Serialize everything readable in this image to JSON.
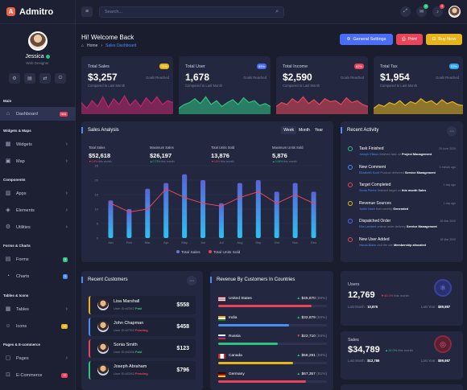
{
  "app": {
    "name": "Admitro",
    "logo_letter": "A"
  },
  "profile": {
    "name": "Jessica",
    "role": "Web Designer"
  },
  "sidebar": {
    "sections": [
      "Main",
      "Widgets & Maps",
      "Components",
      "Forms & Charts",
      "Tables & Icons",
      "Pages & E-commerce"
    ],
    "items": [
      {
        "label": "Dashboard",
        "icon": "home-icon",
        "badge": "new",
        "badge_color": "#e8455a",
        "active": true
      },
      {
        "label": "Widgets",
        "icon": "grid-icon",
        "chevron": true
      },
      {
        "label": "Map",
        "icon": "map-icon",
        "chevron": true
      },
      {
        "label": "Apps",
        "icon": "apps-icon",
        "chevron": true
      },
      {
        "label": "Elements",
        "icon": "layers-icon",
        "chevron": true
      },
      {
        "label": "Utilities",
        "icon": "gear-icon",
        "chevron": true
      },
      {
        "label": "Forms",
        "icon": "form-icon",
        "badge": "5",
        "badge_color": "#2ec27e"
      },
      {
        "label": "Charts",
        "icon": "chart-icon",
        "badge": "5",
        "badge_color": "#4a8df6"
      },
      {
        "label": "Tables",
        "icon": "table-icon",
        "chevron": true
      },
      {
        "label": "Icons",
        "icon": "smile-icon",
        "badge": "10",
        "badge_color": "#e8b41c"
      },
      {
        "label": "Pages",
        "icon": "page-icon",
        "chevron": true
      },
      {
        "label": "E-Commerce",
        "icon": "cart-icon",
        "badge": "12",
        "badge_color": "#e8455a"
      }
    ]
  },
  "topbar": {
    "search_placeholder": "Search...",
    "notif1": "2",
    "notif2": "3"
  },
  "header": {
    "title": "Hi! Welcome Back",
    "crumb_home": "Home",
    "crumb_current": "Sales Dashboard"
  },
  "buttons": {
    "settings": "General Settings",
    "print": "Print",
    "buy": "Buy Now"
  },
  "stats": [
    {
      "label": "Total Sales",
      "value": "$3,257",
      "pct": "74%",
      "pct_color": "#e8b41c",
      "compare": "Compared to Last Month",
      "goal": "Goals Reached",
      "color": "#c2246a"
    },
    {
      "label": "Total User",
      "value": "1,678",
      "pct": "85%",
      "pct_color": "#4a6df6",
      "compare": "Compared to Last Month",
      "goal": "Goals Reached",
      "color": "#2ec27e"
    },
    {
      "label": "Total Income",
      "value": "$2,590",
      "pct": "62%",
      "pct_color": "#e8455a",
      "compare": "Compared to Last Month",
      "goal": "Goals Reached",
      "color": "#e8455a"
    },
    {
      "label": "Total Tax",
      "value": "$1,954",
      "pct": "53%",
      "pct_color": "#2ea6f6",
      "compare": "Compared to Last Month",
      "goal": "Goals Reached",
      "color": "#e8b41c"
    }
  ],
  "sales_analysis": {
    "title": "Sales Analysis",
    "tabs": [
      "Week",
      "Month",
      "Year"
    ],
    "metrics": [
      {
        "label": "Total Sales",
        "value": "$52,618",
        "change": "0.9%",
        "note": "this month",
        "dir": "down"
      },
      {
        "label": "Maximum Sales",
        "value": "$26,197",
        "change": "0.73%",
        "note": "this month",
        "dir": "up"
      },
      {
        "label": "Total Units Sold",
        "value": "13,876",
        "change": "0.8%",
        "note": "this month",
        "dir": "down"
      },
      {
        "label": "Maximum Units Sold",
        "value": "5,876",
        "change": "0.06%",
        "note": "this month",
        "dir": "up"
      }
    ]
  },
  "chart_data": {
    "type": "bar",
    "categories": [
      "Jan",
      "Feb",
      "Mar",
      "Apr",
      "May",
      "Jun",
      "Jul",
      "Aug",
      "Sep",
      "Oct",
      "Nov",
      "Dec"
    ],
    "series": [
      {
        "name": "Total Sales",
        "type": "bar",
        "values": [
          13,
          10,
          17,
          19,
          22,
          20,
          12,
          19,
          20,
          16,
          19,
          16
        ]
      },
      {
        "name": "Total Units Sold",
        "type": "line",
        "values": [
          12,
          9,
          10,
          17,
          14,
          12,
          11,
          14,
          16,
          12,
          15,
          12
        ]
      }
    ],
    "yticks": [
      "25",
      "20",
      "15",
      "10",
      "5",
      "0"
    ],
    "ylim": [
      0,
      25
    ]
  },
  "recent_activity": {
    "title": "Recent Activity",
    "items": [
      {
        "title": "Task Finished",
        "who": "Joseph Ellison",
        "text": "finished task on",
        "target": "Project Management",
        "time": "29 June 2020",
        "color": "#2ec27e"
      },
      {
        "title": "New Comment",
        "who": "Elizabeth Scott",
        "text": "Product delivered",
        "target": "Service Management",
        "time": "1 minute ago",
        "color": "#4a8df6"
      },
      {
        "title": "Target Completed",
        "who": "Sonia Peters",
        "text": "finished target on",
        "target": "this month Sales",
        "time": "1 day ago",
        "color": "#e8455a"
      },
      {
        "title": "Revenue Sources",
        "who": "Justin Nash",
        "text": "from weekly",
        "target": "Generated",
        "time": "1 day ago",
        "color": "#e8b41c"
      },
      {
        "title": "Dispatched Order",
        "who": "Ella Lambert",
        "text": "ontime order delivery",
        "target": "Service Management",
        "time": "26 Mar 2020",
        "color": "#4a6df6"
      },
      {
        "title": "New User Added",
        "who": "Nicola Blake",
        "text": "visit the site",
        "target": "Membership allocated",
        "time": "18 Mar 2020",
        "color": "#e8455a"
      }
    ]
  },
  "recent_customers": {
    "title": "Recent Customers",
    "items": [
      {
        "name": "Lisa Marshall",
        "id": "User ID:#2342",
        "status": "Paid",
        "status_color": "#2ec27e",
        "amount": "$558",
        "bar": "#e8b41c"
      },
      {
        "name": "John Chapman",
        "id": "User ID:#2762",
        "status": "Pending",
        "status_color": "#e8455a",
        "amount": "$458",
        "bar": "#4a8df6"
      },
      {
        "name": "Sonia Smith",
        "id": "User ID:#4356",
        "status": "Paid",
        "status_color": "#2ec27e",
        "amount": "$123",
        "bar": "#e8455a"
      },
      {
        "name": "Joseph Abraham",
        "id": "User ID:#2342",
        "status": "Pending",
        "status_color": "#e8455a",
        "amount": "$796",
        "bar": "#2ec27e"
      }
    ]
  },
  "revenue_countries": {
    "title": "Revenue By Customers In Countries",
    "items": [
      {
        "name": "United States",
        "value": "$45,870",
        "pct": "(86%)",
        "fill": 0.86,
        "color": "#e8455a",
        "dir": "up"
      },
      {
        "name": "India",
        "value": "$32,879",
        "pct": "(65%)",
        "fill": 0.65,
        "color": "#4a8df6",
        "dir": "up"
      },
      {
        "name": "Russia",
        "value": "$22,710",
        "pct": "(55%)",
        "fill": 0.55,
        "color": "#2ec27e",
        "dir": "down"
      },
      {
        "name": "Canada",
        "value": "$56,291",
        "pct": "(69%)",
        "fill": 0.69,
        "color": "#e8b41c",
        "dir": "up"
      },
      {
        "name": "Germany",
        "value": "$67,357",
        "pct": "(81%)",
        "fill": 0.81,
        "color": "#e8455a",
        "dir": "up"
      }
    ]
  },
  "users_card": {
    "label": "Users",
    "value": "12,769",
    "change": "45.0%",
    "note": "this month",
    "lm_label": "Last Month :",
    "lm_value": "10,876",
    "ly_label": "Last Year :",
    "ly_value": "$89,987"
  },
  "sales_card": {
    "label": "Sales",
    "value": "$34,789",
    "change": "14.0%",
    "note": "this month",
    "lm_label": "Last Month :",
    "lm_value": "$12,786",
    "ly_label": "Last Year :",
    "ly_value": "$89,987"
  }
}
